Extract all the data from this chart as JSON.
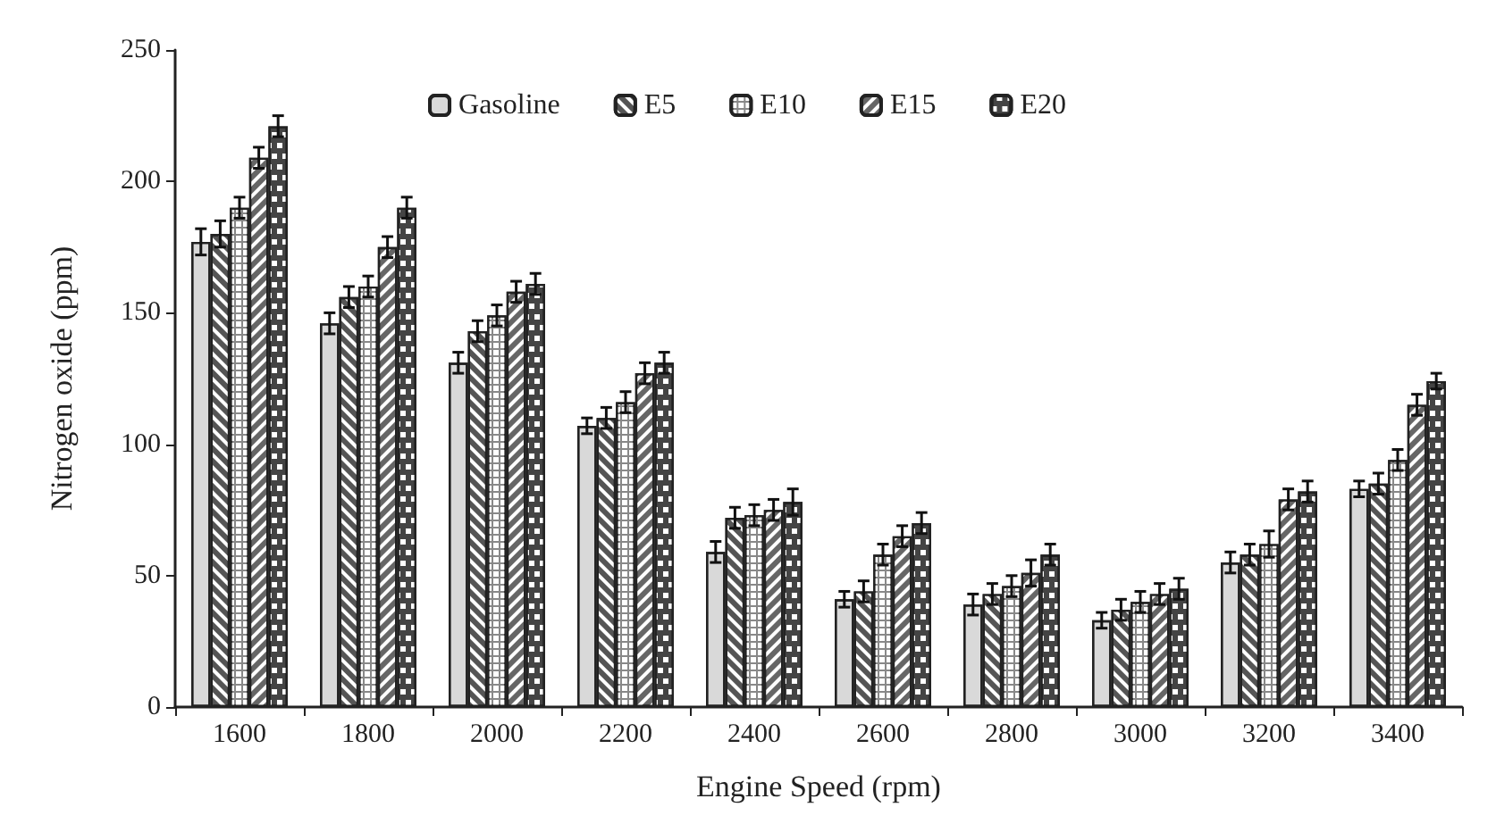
{
  "chart_data": {
    "type": "bar",
    "xlabel": "Engine Speed (rpm)",
    "ylabel": "Nitrogen oxide (ppm)",
    "categories": [
      "1600",
      "1800",
      "2000",
      "2200",
      "2400",
      "2600",
      "2800",
      "3000",
      "3200",
      "3400"
    ],
    "series": [
      {
        "name": "Gasoline",
        "color": "#d9d9d9",
        "values": [
          177,
          146,
          131,
          107,
          59,
          41,
          39,
          33,
          55,
          83
        ],
        "errors": [
          5,
          4,
          4,
          3,
          4,
          3,
          4,
          3,
          4,
          3
        ]
      },
      {
        "name": "E5",
        "color": "#555555",
        "values": [
          180,
          156,
          143,
          110,
          72,
          44,
          43,
          37,
          58,
          85
        ],
        "errors": [
          5,
          4,
          4,
          4,
          4,
          4,
          4,
          4,
          4,
          4
        ]
      },
      {
        "name": "E10",
        "color": "#888888",
        "values": [
          190,
          160,
          149,
          116,
          73,
          58,
          46,
          40,
          62,
          94
        ],
        "errors": [
          4,
          4,
          4,
          4,
          4,
          4,
          4,
          4,
          5,
          4
        ]
      },
      {
        "name": "E15",
        "color": "#666666",
        "values": [
          209,
          175,
          158,
          127,
          75,
          65,
          51,
          43,
          79,
          115
        ],
        "errors": [
          4,
          4,
          4,
          4,
          4,
          4,
          5,
          4,
          4,
          4
        ]
      },
      {
        "name": "E20",
        "color": "#444444",
        "values": [
          221,
          190,
          161,
          131,
          78,
          70,
          58,
          45,
          82,
          124
        ],
        "errors": [
          4,
          4,
          4,
          4,
          5,
          4,
          4,
          4,
          4,
          3
        ]
      }
    ],
    "ylim": [
      0,
      250
    ],
    "yticks": [
      0,
      50,
      100,
      150,
      200,
      250
    ],
    "grid": false,
    "legend": "top"
  }
}
